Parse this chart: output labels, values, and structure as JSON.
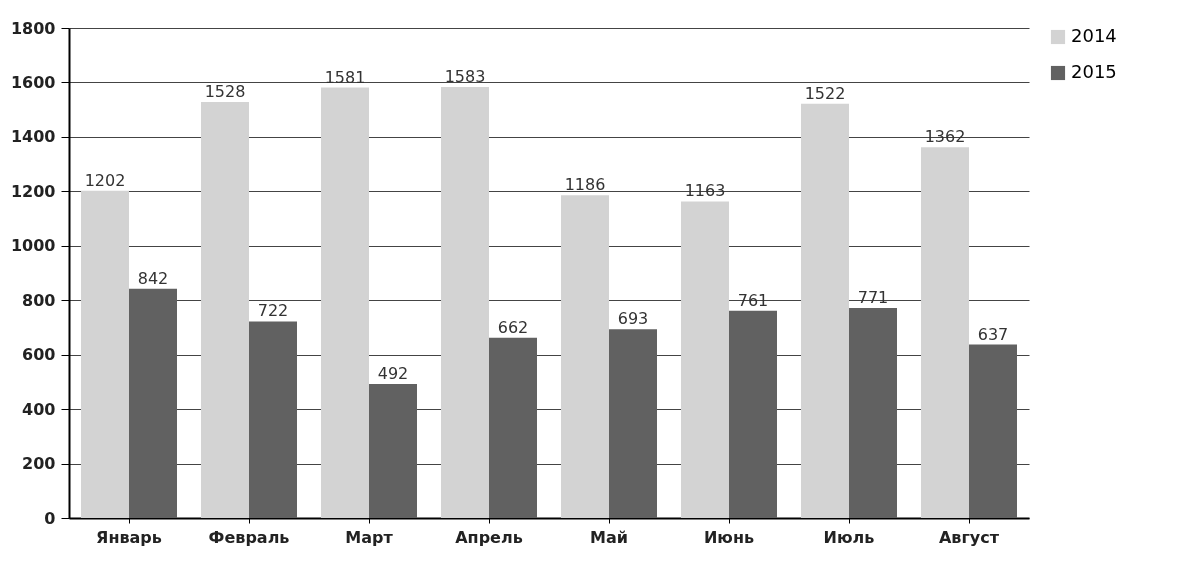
{
  "chart_data": {
    "type": "bar",
    "categories": [
      "Январь",
      "Февраль",
      "Март",
      "Апрель",
      "Май",
      "Июнь",
      "Июль",
      "Август"
    ],
    "series": [
      {
        "name": "2014",
        "color": "#d3d3d3",
        "values": [
          1202,
          1528,
          1581,
          1583,
          1186,
          1163,
          1522,
          1362
        ]
      },
      {
        "name": "2015",
        "color": "#616161",
        "values": [
          842,
          722,
          492,
          662,
          693,
          761,
          771,
          637
        ]
      }
    ],
    "ylim": [
      0,
      1800
    ],
    "yticks": [
      0,
      200,
      400,
      600,
      800,
      1000,
      1200,
      1400,
      1600,
      1800
    ],
    "grid": "y",
    "legend": "right",
    "data_labels": true
  }
}
